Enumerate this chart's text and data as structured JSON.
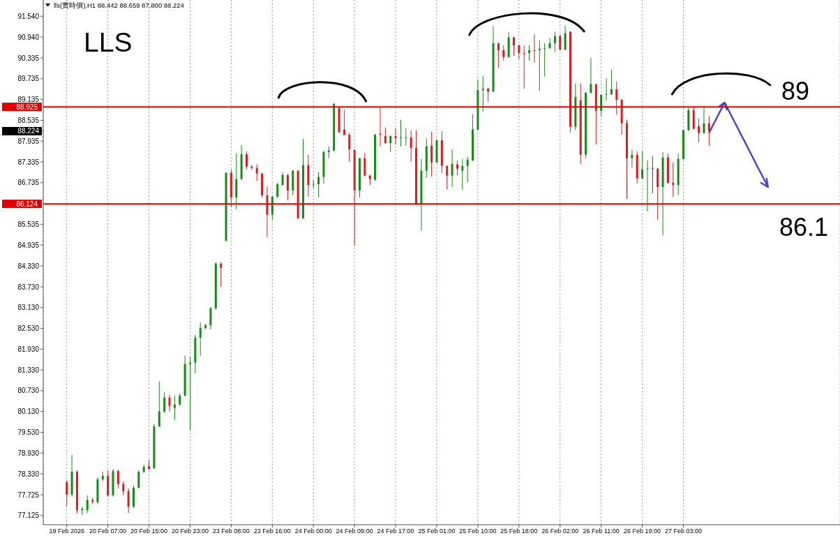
{
  "chart_data": {
    "type": "candlestick",
    "title": "LLS",
    "subtitle": "lls(實時價),H1  88.442 88.659 87.800 88.224",
    "categories": [
      "19 Feb 2026",
      null,
      null,
      null,
      null,
      null,
      null,
      null,
      "20 Feb 07:00",
      null,
      null,
      null,
      null,
      null,
      null,
      null,
      "20 Feb 15:00",
      null,
      null,
      null,
      null,
      null,
      null,
      null,
      "20 Feb 23:00",
      null,
      null,
      null,
      null,
      null,
      null,
      null,
      "23 Feb 08:00",
      null,
      null,
      null,
      null,
      null,
      null,
      null,
      "23 Feb 16:00",
      null,
      null,
      null,
      null,
      null,
      null,
      null,
      "24 Feb 00:00",
      null,
      null,
      null,
      null,
      null,
      null,
      null,
      "24 Feb 09:00",
      null,
      null,
      null,
      null,
      null,
      null,
      null,
      "24 Feb 17:00",
      null,
      null,
      null,
      null,
      null,
      null,
      null,
      "25 Feb 01:00",
      null,
      null,
      null,
      null,
      null,
      null,
      null,
      "25 Feb 10:00",
      null,
      null,
      null,
      null,
      null,
      null,
      null,
      "25 Feb 18:00",
      null,
      null,
      null,
      null,
      null,
      null,
      null,
      "26 Feb 02:00",
      null,
      null,
      null,
      null,
      null,
      null,
      null,
      "26 Feb 11:00",
      null,
      null,
      null,
      null,
      null,
      null,
      null,
      "26 Feb 19:00",
      null,
      null,
      null,
      null,
      null,
      null,
      null,
      "27 Feb 03:00",
      null,
      null,
      null,
      null,
      null
    ],
    "ohlc": [
      [
        78.09,
        78.15,
        77.4,
        77.73
      ],
      [
        77.73,
        78.88,
        77.67,
        78.39
      ],
      [
        78.39,
        78.43,
        77.18,
        77.28
      ],
      [
        77.28,
        77.38,
        77.14,
        77.32
      ],
      [
        77.28,
        77.71,
        77.2,
        77.57
      ],
      [
        77.57,
        77.63,
        77.47,
        77.53
      ],
      [
        77.51,
        78.23,
        77.47,
        78.17
      ],
      [
        78.17,
        78.39,
        78.11,
        78.27
      ],
      [
        78.27,
        78.43,
        77.67,
        77.71
      ],
      [
        77.71,
        78.47,
        77.67,
        78.41
      ],
      [
        78.41,
        78.45,
        77.91,
        78.03
      ],
      [
        78.03,
        78.11,
        77.71,
        77.83
      ],
      [
        77.83,
        77.91,
        77.2,
        77.38
      ],
      [
        77.38,
        77.99,
        77.34,
        77.93
      ],
      [
        77.93,
        78.43,
        77.91,
        78.39
      ],
      [
        78.39,
        78.59,
        78.35,
        78.53
      ],
      [
        78.55,
        78.73,
        78.43,
        78.47
      ],
      [
        78.49,
        79.76,
        78.47,
        79.7
      ],
      [
        79.7,
        80.99,
        79.68,
        80.13
      ],
      [
        80.13,
        80.69,
        80.08,
        80.53
      ],
      [
        80.53,
        80.61,
        80.13,
        80.29
      ],
      [
        80.23,
        80.59,
        79.88,
        80.33
      ],
      [
        80.33,
        80.65,
        80.29,
        80.59
      ],
      [
        80.59,
        81.74,
        80.57,
        81.5
      ],
      [
        81.5,
        81.7,
        79.58,
        81.54
      ],
      [
        81.54,
        82.34,
        81.23,
        82.26
      ],
      [
        82.26,
        82.7,
        81.74,
        82.54
      ],
      [
        82.54,
        82.66,
        82.5,
        82.62
      ],
      [
        82.62,
        83.15,
        82.5,
        83.11
      ],
      [
        83.11,
        84.44,
        83.07,
        84.4
      ],
      [
        84.4,
        84.44,
        83.73,
        84.28
      ],
      [
        85.06,
        87.04,
        85.04,
        87.02
      ],
      [
        87.02,
        87.12,
        86.03,
        86.31
      ],
      [
        86.31,
        87.58,
        85.97,
        86.84
      ],
      [
        86.84,
        87.82,
        86.82,
        87.56
      ],
      [
        87.56,
        87.64,
        87.12,
        87.2
      ],
      [
        87.2,
        87.24,
        87.12,
        87.16
      ],
      [
        87.16,
        87.26,
        86.79,
        87.0
      ],
      [
        87.0,
        87.02,
        86.31,
        86.37
      ],
      [
        86.37,
        86.63,
        85.16,
        85.81
      ],
      [
        85.81,
        86.35,
        85.67,
        86.33
      ],
      [
        86.33,
        86.73,
        86.29,
        86.69
      ],
      [
        86.67,
        87.04,
        86.65,
        86.96
      ],
      [
        86.96,
        86.98,
        86.23,
        86.51
      ],
      [
        86.51,
        87.1,
        86.37,
        87.08
      ],
      [
        87.08,
        87.1,
        85.69,
        85.71
      ],
      [
        85.71,
        88.0,
        85.69,
        87.24
      ],
      [
        87.24,
        87.54,
        86.33,
        86.67
      ],
      [
        86.68,
        86.82,
        86.57,
        86.7
      ],
      [
        86.69,
        87.04,
        86.31,
        86.9
      ],
      [
        86.9,
        87.66,
        86.71,
        87.62
      ],
      [
        87.62,
        87.78,
        87.44,
        87.66
      ],
      [
        87.66,
        89.03,
        87.64,
        89.01
      ],
      [
        88.89,
        88.93,
        88.17,
        88.19
      ],
      [
        88.27,
        88.85,
        88.1,
        88.12
      ],
      [
        88.12,
        88.17,
        87.34,
        87.7
      ],
      [
        87.68,
        87.7,
        84.92,
        86.51
      ],
      [
        86.51,
        87.46,
        86.31,
        87.44
      ],
      [
        87.44,
        87.6,
        86.92,
        86.94
      ],
      [
        86.94,
        86.96,
        86.67,
        86.84
      ],
      [
        86.82,
        88.15,
        86.79,
        88.12
      ],
      [
        88.15,
        88.93,
        87.78,
        88.12
      ],
      [
        88.08,
        88.33,
        87.86,
        87.88
      ],
      [
        87.88,
        88.1,
        87.62,
        88.08
      ],
      [
        88.08,
        88.31,
        87.84,
        88.02
      ],
      [
        88.03,
        88.55,
        87.78,
        88.04
      ],
      [
        88.03,
        88.31,
        87.8,
        88.04
      ],
      [
        88.04,
        88.25,
        87.34,
        87.74
      ],
      [
        87.74,
        88.25,
        86.09,
        86.11
      ],
      [
        86.11,
        87.42,
        85.36,
        87.08
      ],
      [
        87.08,
        88.02,
        86.88,
        87.78
      ],
      [
        87.8,
        88.21,
        86.92,
        87.32
      ],
      [
        87.32,
        87.98,
        87.3,
        87.96
      ],
      [
        87.96,
        88.23,
        87.02,
        87.22
      ],
      [
        87.22,
        87.24,
        86.55,
        86.94
      ],
      [
        86.94,
        87.7,
        86.61,
        87.28
      ],
      [
        87.26,
        87.38,
        86.94,
        87.14
      ],
      [
        87.08,
        87.42,
        86.53,
        87.22
      ],
      [
        87.22,
        87.48,
        86.75,
        87.4
      ],
      [
        87.38,
        88.71,
        87.36,
        88.27
      ],
      [
        88.27,
        89.72,
        88.25,
        89.41
      ],
      [
        89.41,
        89.82,
        88.79,
        89.45
      ],
      [
        89.45,
        89.48,
        89.07,
        89.37
      ],
      [
        89.37,
        91.25,
        89.35,
        90.76
      ],
      [
        90.76,
        90.78,
        90.06,
        90.56
      ],
      [
        90.56,
        90.7,
        90.26,
        90.36
      ],
      [
        90.36,
        91.09,
        90.34,
        90.93
      ],
      [
        90.93,
        90.95,
        90.4,
        90.7
      ],
      [
        90.7,
        90.72,
        90.3,
        90.48
      ],
      [
        90.48,
        90.7,
        89.45,
        90.46
      ],
      [
        90.48,
        90.7,
        90.26,
        90.56
      ],
      [
        90.56,
        91.01,
        90.2,
        90.55
      ],
      [
        90.56,
        90.85,
        89.39,
        90.6
      ],
      [
        90.61,
        90.76,
        89.8,
        90.62
      ],
      [
        90.62,
        90.91,
        90.6,
        90.76
      ],
      [
        90.76,
        91.09,
        90.5,
        90.97
      ],
      [
        90.97,
        91.01,
        90.56,
        90.58
      ],
      [
        90.58,
        91.27,
        90.56,
        91.05
      ],
      [
        91.09,
        91.11,
        88.19,
        88.35
      ],
      [
        88.35,
        89.6,
        88.25,
        89.21
      ],
      [
        89.11,
        89.6,
        87.28,
        87.54
      ],
      [
        87.54,
        89.35,
        87.44,
        89.33
      ],
      [
        89.33,
        90.34,
        89.31,
        89.58
      ],
      [
        89.58,
        89.6,
        87.84,
        88.81
      ],
      [
        88.81,
        89.29,
        88.65,
        89.27
      ],
      [
        89.27,
        89.74,
        89.11,
        89.29
      ],
      [
        89.29,
        90.0,
        89.27,
        89.43
      ],
      [
        89.43,
        89.66,
        88.69,
        89.13
      ],
      [
        89.13,
        89.15,
        88.12,
        88.45
      ],
      [
        88.45,
        88.55,
        86.27,
        87.44
      ],
      [
        87.44,
        87.68,
        87.18,
        87.54
      ],
      [
        87.54,
        87.64,
        86.71,
        86.86
      ],
      [
        86.86,
        87.64,
        86.84,
        87.12
      ],
      [
        87.13,
        87.38,
        85.91,
        87.14
      ],
      [
        87.16,
        87.5,
        86.43,
        87.16
      ],
      [
        87.14,
        87.16,
        85.67,
        86.61
      ],
      [
        86.61,
        87.62,
        85.22,
        87.46
      ],
      [
        87.46,
        87.58,
        86.71,
        86.73
      ],
      [
        86.73,
        87.32,
        86.33,
        86.67
      ],
      [
        86.67,
        87.58,
        86.37,
        87.42
      ],
      [
        87.42,
        88.27,
        87.4,
        88.25
      ],
      [
        88.25,
        88.93,
        88.23,
        88.83
      ],
      [
        88.83,
        88.93,
        88.27,
        88.29
      ],
      [
        88.37,
        88.59,
        87.9,
        88.17
      ],
      [
        88.17,
        88.93,
        88.15,
        88.45
      ],
      [
        88.442,
        88.659,
        87.8,
        88.224
      ]
    ],
    "colors": [
      "#e8161c",
      "#138c13",
      "#e8161c",
      "#138c13",
      "#138c13",
      "#e8161c",
      "#138c13",
      "#138c13",
      "#e8161c",
      "#138c13",
      "#e8161c",
      "#e8161c",
      "#e8161c",
      "#138c13",
      "#138c13",
      "#138c13",
      "#e8161c",
      "#138c13",
      "#138c13",
      "#138c13",
      "#e8161c",
      "#138c13",
      "#138c13",
      "#138c13",
      "#138c13",
      "#138c13",
      "#138c13",
      "#138c13",
      "#138c13",
      "#138c13",
      "#e8161c",
      "#138c13",
      "#e8161c",
      "#138c13",
      "#138c13",
      "#e8161c",
      "#e8161c",
      "#e8161c",
      "#e8161c",
      "#e8161c",
      "#138c13",
      "#138c13",
      "#138c13",
      "#e8161c",
      "#138c13",
      "#e8161c",
      "#138c13",
      "#e8161c",
      "#138c13",
      "#138c13",
      "#138c13",
      "#138c13",
      "#138c13",
      "#e8161c",
      "#e8161c",
      "#e8161c",
      "#e8161c",
      "#138c13",
      "#e8161c",
      "#e8161c",
      "#138c13",
      "#e8161c",
      "#e8161c",
      "#138c13",
      "#e8161c",
      "#138c13",
      "#138c13",
      "#e8161c",
      "#e8161c",
      "#138c13",
      "#138c13",
      "#e8161c",
      "#138c13",
      "#e8161c",
      "#e8161c",
      "#138c13",
      "#e8161c",
      "#138c13",
      "#138c13",
      "#138c13",
      "#138c13",
      "#138c13",
      "#e8161c",
      "#138c13",
      "#e8161c",
      "#e8161c",
      "#138c13",
      "#e8161c",
      "#e8161c",
      "#e8161c",
      "#138c13",
      "#e8161c",
      "#138c13",
      "#138c13",
      "#138c13",
      "#138c13",
      "#e8161c",
      "#138c13",
      "#e8161c",
      "#138c13",
      "#e8161c",
      "#138c13",
      "#138c13",
      "#e8161c",
      "#138c13",
      "#138c13",
      "#138c13",
      "#e8161c",
      "#e8161c",
      "#e8161c",
      "#138c13",
      "#e8161c",
      "#138c13",
      "#138c13",
      "#3a3a3a",
      "#e8161c",
      "#138c13",
      "#e8161c",
      "#e8161c",
      "#138c13",
      "#138c13",
      "#138c13",
      "#e8161c",
      "#e8161c",
      "#138c13",
      "#e8161c"
    ],
    "ylim": [
      76.86,
      92.01
    ],
    "yticks": [
      {
        "value": 91.54,
        "label": "91.540"
      },
      {
        "value": 90.94,
        "label": "90.940"
      },
      {
        "value": 90.335,
        "label": "90.335"
      },
      {
        "value": 89.735,
        "label": "89.735"
      },
      {
        "value": 89.135,
        "label": "89.135"
      },
      {
        "value": 88.535,
        "label": "88.535"
      },
      {
        "value": 88.224,
        "label": "88.224"
      },
      {
        "value": 87.935,
        "label": "87.935"
      },
      {
        "value": 87.335,
        "label": "87.335"
      },
      {
        "value": 86.735,
        "label": "86.735"
      },
      {
        "value": 85.535,
        "label": "85.535"
      },
      {
        "value": 84.935,
        "label": "84.935"
      },
      {
        "value": 84.33,
        "label": "84.330"
      },
      {
        "value": 83.73,
        "label": "83.730"
      },
      {
        "value": 83.13,
        "label": "83.130"
      },
      {
        "value": 82.53,
        "label": "82.530"
      },
      {
        "value": 81.93,
        "label": "81.930"
      },
      {
        "value": 81.33,
        "label": "81.330"
      },
      {
        "value": 80.73,
        "label": "80.730"
      },
      {
        "value": 80.13,
        "label": "80.130"
      },
      {
        "value": 79.53,
        "label": "79.530"
      },
      {
        "value": 78.93,
        "label": "78.930"
      },
      {
        "value": 78.33,
        "label": "78.330"
      },
      {
        "value": 77.725,
        "label": "77.725"
      },
      {
        "value": 77.125,
        "label": "77.125"
      }
    ],
    "grid": "x",
    "ref_lines": [
      {
        "axis": "y",
        "value": 88.925,
        "label": "88.925",
        "color": "#e00000"
      },
      {
        "axis": "y",
        "value": 86.124,
        "label": "86.124",
        "color": "#e00000"
      }
    ],
    "annotations": [
      {
        "text": "89",
        "y": 88.925
      },
      {
        "text": "86.1",
        "y": 86.124
      }
    ]
  }
}
